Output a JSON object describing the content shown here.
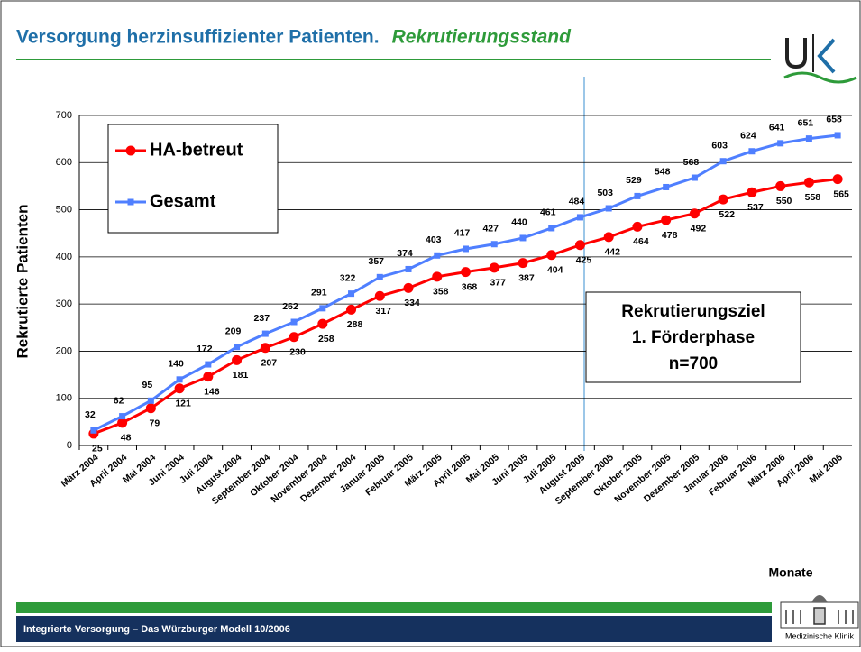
{
  "header": {
    "title": "Versorgung herzinsuffizienter Patienten.",
    "subtitle": "Rekrutierungsstand"
  },
  "chart_data": {
    "type": "line",
    "y_label": "Rekrutierte Patienten",
    "x_label": "Monate",
    "categories": [
      "März 2004",
      "April 2004",
      "Mai 2004",
      "Juni 2004",
      "Juli 2004",
      "August 2004",
      "September 2004",
      "Oktober 2004",
      "November 2004",
      "Dezember 2004",
      "Januar 2005",
      "Februar 2005",
      "März 2005",
      "April 2005",
      "Mai 2005",
      "Juni 2005",
      "Juli 2005",
      "August 2005",
      "September 2005",
      "Oktober 2005",
      "November 2005",
      "Dezember 2005",
      "Januar 2006",
      "Februar 2006",
      "März 2006",
      "April 2006",
      "Mai 2006"
    ],
    "series": [
      {
        "name": "HA-betreut",
        "color": "#ff0000",
        "marker": "circle",
        "values": [
          25,
          48,
          79,
          121,
          146,
          181,
          207,
          230,
          258,
          288,
          317,
          334,
          358,
          368,
          377,
          387,
          404,
          425,
          442,
          464,
          478,
          492,
          522,
          537,
          550,
          558,
          565
        ]
      },
      {
        "name": "Gesamt",
        "color": "#4f7fff",
        "marker": "square",
        "values": [
          32,
          62,
          95,
          140,
          172,
          209,
          237,
          262,
          291,
          322,
          357,
          374,
          403,
          417,
          427,
          440,
          461,
          484,
          503,
          529,
          548,
          568,
          603,
          624,
          641,
          651,
          658
        ]
      }
    ],
    "ylim": [
      0,
      700
    ],
    "yticks": [
      0,
      100,
      200,
      300,
      400,
      500,
      600,
      700
    ],
    "grid": true,
    "legend": "top-left",
    "annotation": [
      "Rekrutierungsziel",
      "1. Förderphase",
      "n=700"
    ]
  },
  "footer": {
    "text": "Integrierte Versorgung – Das Würzburger Modell 10/2006",
    "logo_caption": "Medizinische Klinik"
  }
}
